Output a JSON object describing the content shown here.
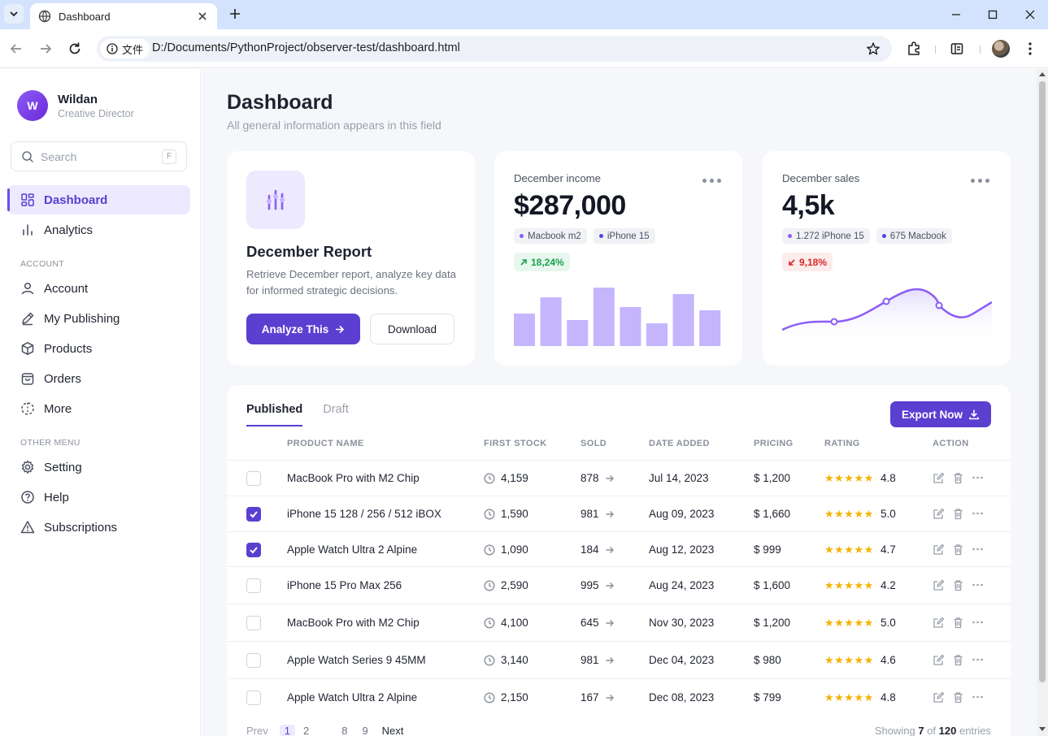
{
  "browser": {
    "tab_title": "Dashboard",
    "site_chip": "文件",
    "url": "D:/Documents/PythonProject/observer-test/dashboard.html"
  },
  "sidebar": {
    "user": {
      "initial": "W",
      "name": "Wildan",
      "role": "Creative Director"
    },
    "search": {
      "placeholder": "Search",
      "shortcut": "F"
    },
    "items": [
      {
        "label": "Dashboard",
        "icon": "grid-icon",
        "active": true
      },
      {
        "label": "Analytics",
        "icon": "bar-chart-icon"
      }
    ],
    "section_account": "ACCOUNT",
    "account_items": [
      {
        "label": "Account",
        "icon": "user-icon"
      },
      {
        "label": "My Publishing",
        "icon": "pen-icon"
      },
      {
        "label": "Products",
        "icon": "box-icon"
      },
      {
        "label": "Orders",
        "icon": "bag-icon"
      },
      {
        "label": "More",
        "icon": "more-dashed-icon"
      }
    ],
    "section_other": "OTHER MENU",
    "other_items": [
      {
        "label": "Setting",
        "icon": "gear-icon"
      },
      {
        "label": "Help",
        "icon": "help-icon"
      },
      {
        "label": "Subscriptions",
        "icon": "warning-icon"
      }
    ]
  },
  "header": {
    "title": "Dashboard",
    "subtitle": "All general information appears in this field"
  },
  "report_card": {
    "title": "December Report",
    "description": "Retrieve December report, analyze key data for informed strategic decisions.",
    "primary_label": "Analyze This",
    "secondary_label": "Download"
  },
  "income_card": {
    "label": "December income",
    "value": "$287,000",
    "chips": [
      {
        "label": "Macbook m2",
        "color": "#8b5cf6"
      },
      {
        "label": "iPhone 15",
        "color": "#4f46e5"
      }
    ],
    "trend": "18,24%",
    "trend_direction": "up",
    "bars": [
      40,
      60,
      32,
      72,
      48,
      28,
      64,
      44
    ]
  },
  "sales_card": {
    "label": "December sales",
    "value": "4,5k",
    "chips": [
      {
        "label": "1.272 iPhone 15",
        "color": "#8b5cf6"
      },
      {
        "label": "675 Macbook",
        "color": "#4f46e5"
      }
    ],
    "trend": "9,18%",
    "trend_direction": "down"
  },
  "table": {
    "tabs": [
      "Published",
      "Draft"
    ],
    "active_tab": "Published",
    "export_label": "Export Now",
    "columns": [
      "PRODUCT NAME",
      "FIRST STOCK",
      "SOLD",
      "DATE ADDED",
      "PRICING",
      "RATING",
      "ACTION"
    ],
    "rows": [
      {
        "checked": false,
        "name": "MacBook Pro with M2 Chip",
        "stock": "4,159",
        "sold": "878",
        "date": "Jul 14, 2023",
        "price": "$ 1,200",
        "stars": "★★★★★",
        "rating": "4.8"
      },
      {
        "checked": true,
        "name": "iPhone 15 128 / 256 / 512 iBOX",
        "stock": "1,590",
        "sold": "981",
        "date": "Aug 09, 2023",
        "price": "$ 1,660",
        "stars": "★★★★★",
        "rating": "5.0"
      },
      {
        "checked": true,
        "name": "Apple Watch Ultra 2 Alpine",
        "stock": "1,090",
        "sold": "184",
        "date": "Aug 12, 2023",
        "price": "$ 999",
        "stars": "★★★★★",
        "rating": "4.7"
      },
      {
        "checked": false,
        "name": "iPhone 15 Pro Max 256",
        "stock": "2,590",
        "sold": "995",
        "date": "Aug 24, 2023",
        "price": "$ 1,600",
        "stars": "★★★★★",
        "rating": "4.2"
      },
      {
        "checked": false,
        "name": "MacBook Pro with M2 Chip",
        "stock": "4,100",
        "sold": "645",
        "date": "Nov 30, 2023",
        "price": "$ 1,200",
        "stars": "★★★★★",
        "rating": "5.0"
      },
      {
        "checked": false,
        "name": "Apple Watch Series 9 45MM",
        "stock": "3,140",
        "sold": "981",
        "date": "Dec 04, 2023",
        "price": "$ 980",
        "stars": "★★★★★",
        "rating": "4.6"
      },
      {
        "checked": false,
        "name": "Apple Watch Ultra 2 Alpine",
        "stock": "2,150",
        "sold": "167",
        "date": "Dec 08, 2023",
        "price": "$ 799",
        "stars": "★★★★★",
        "rating": "4.8"
      }
    ],
    "pagination": {
      "prev": "Prev",
      "pages": [
        "1",
        "2",
        "8",
        "9"
      ],
      "current": "1",
      "next": "Next"
    },
    "showing": {
      "prefix": "Showing",
      "count": "7",
      "of": "of",
      "total": "120",
      "suffix": "entries"
    }
  },
  "colors": {
    "accent": "#5b3fd1",
    "bar": "#c4b5fd",
    "line": "#8b5cf6"
  }
}
